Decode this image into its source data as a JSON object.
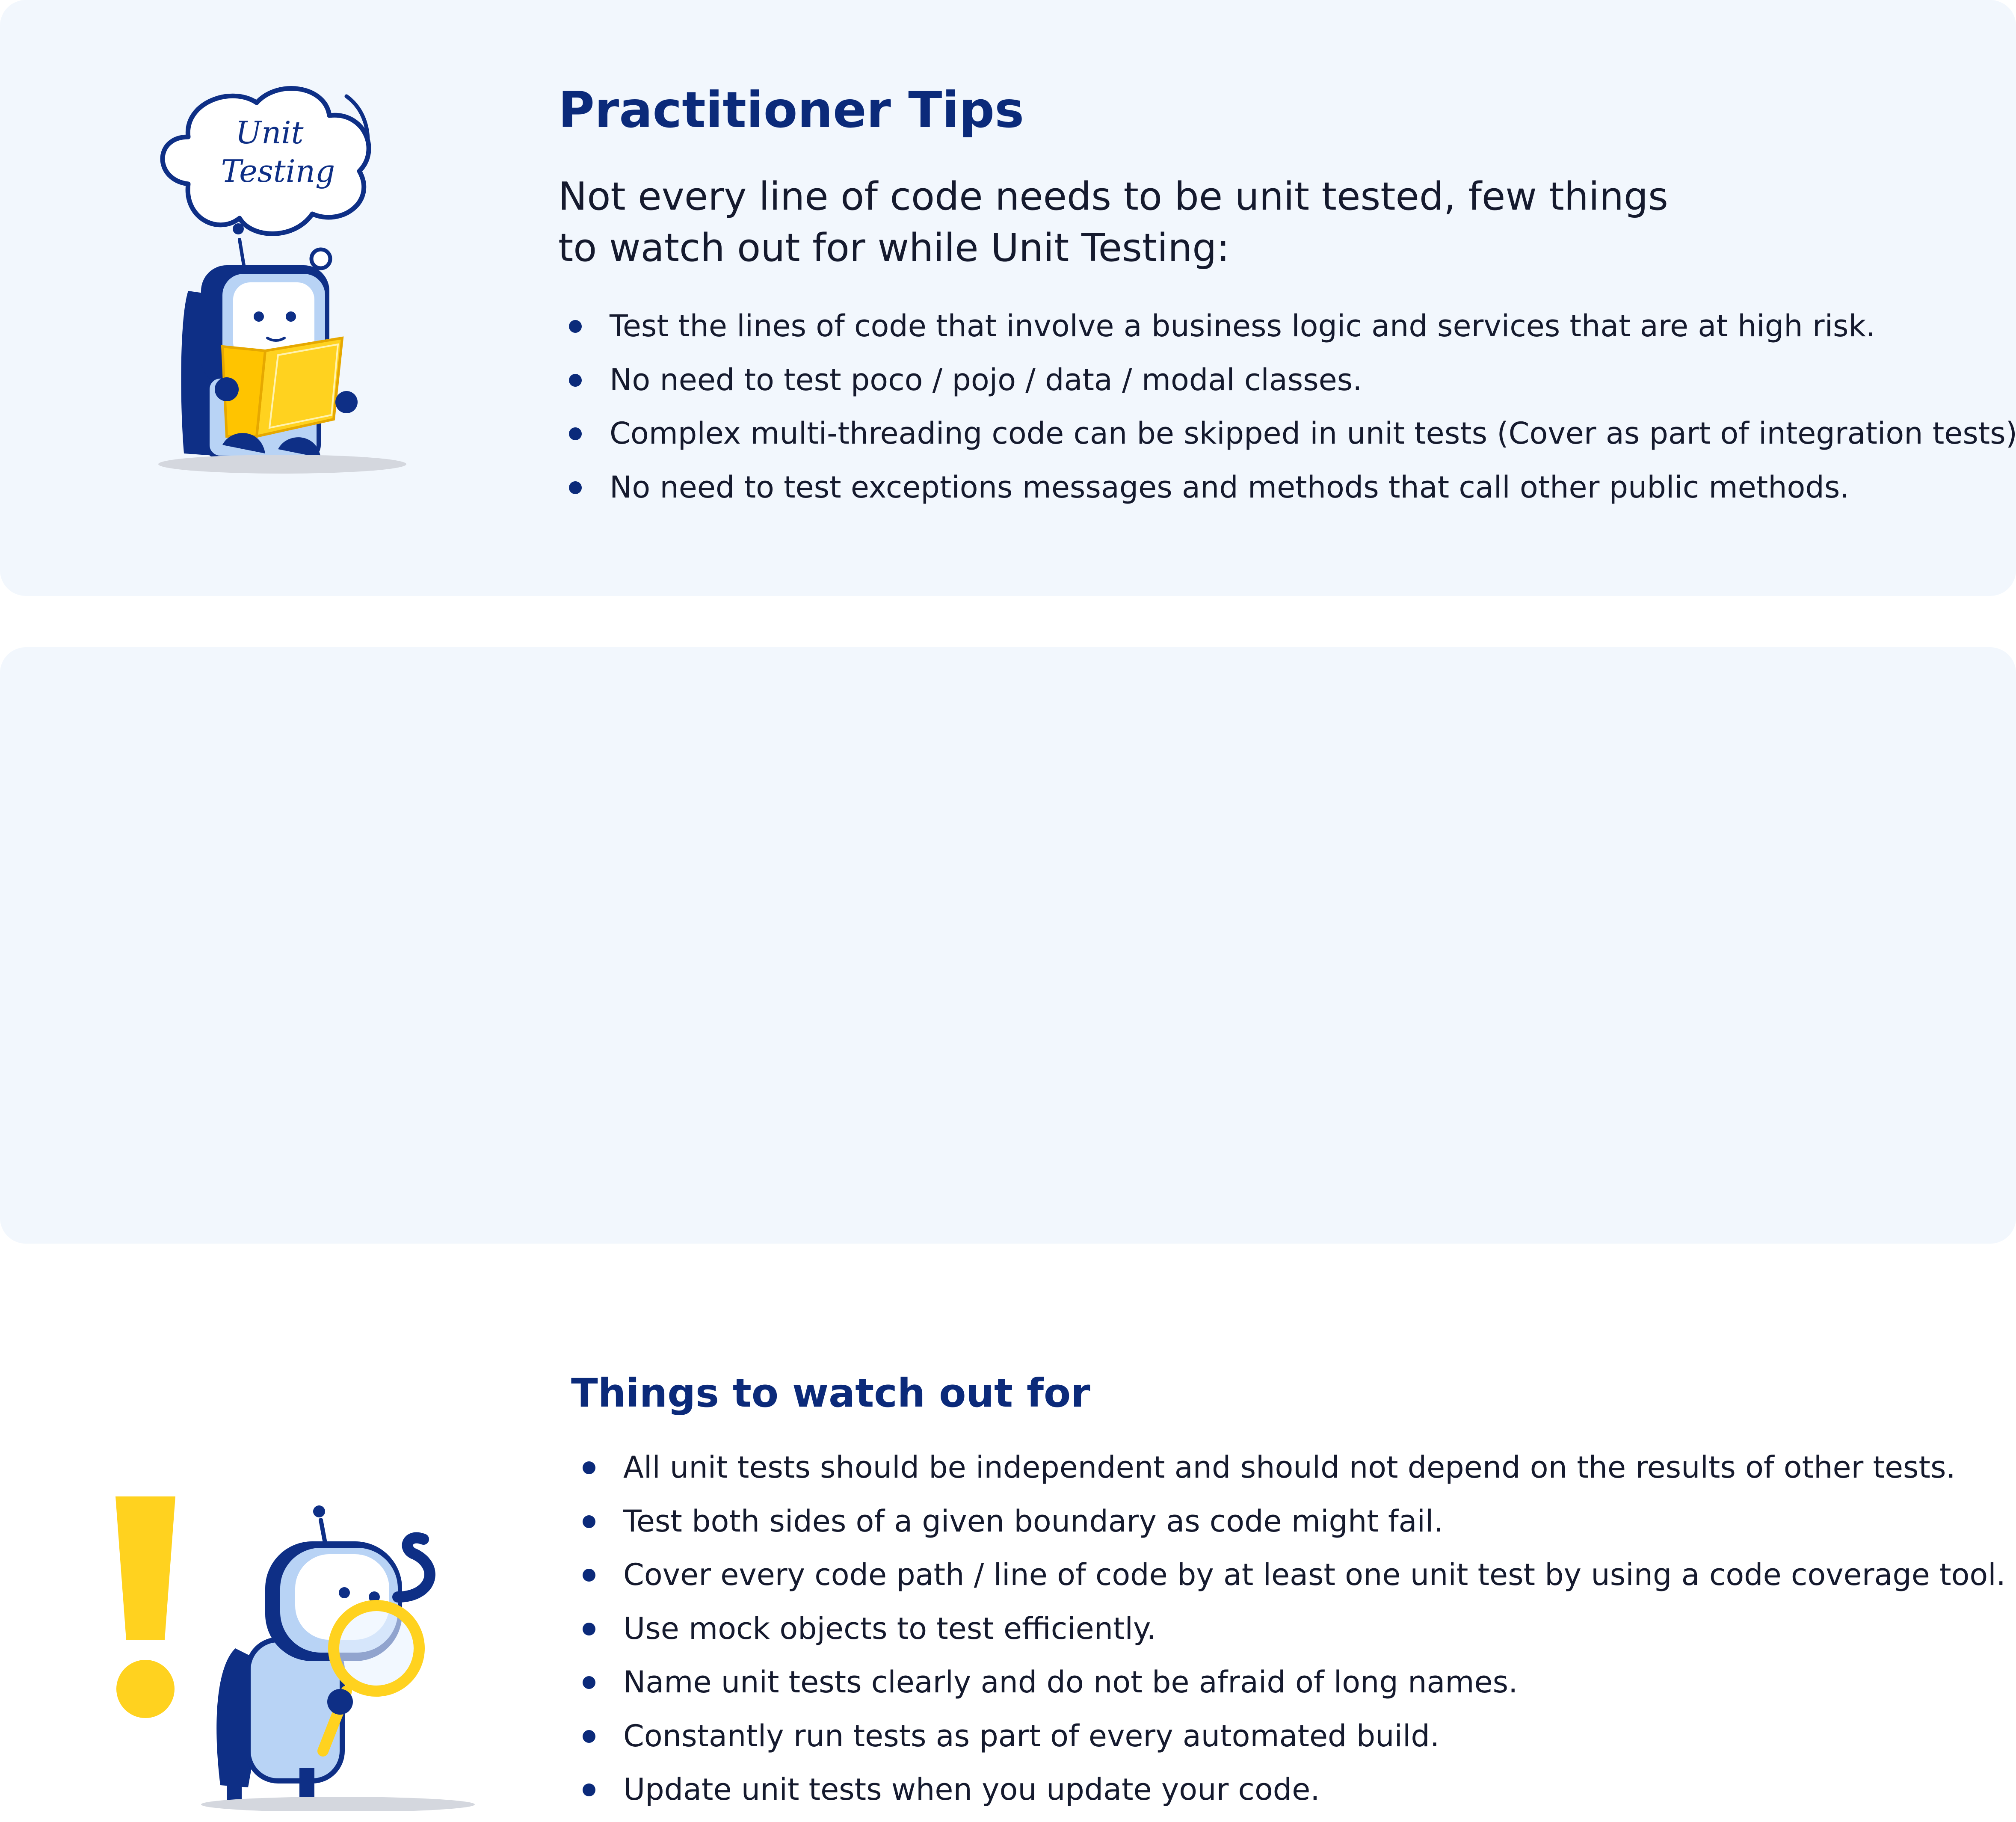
{
  "tips": {
    "title": "Practitioner Tips",
    "intro_line1": "Not every line of code needs to be unit tested, few things",
    "intro_line2": "to watch out for while Unit Testing:",
    "items": [
      "Test the lines of code that involve a business logic and services that are at high risk.",
      "No need to test poco / pojo / data / modal classes.",
      "Complex multi-threading code can be skipped in unit tests (Cover as part of integration tests)",
      "No need to test exceptions messages and methods that call other public methods."
    ],
    "illustration": {
      "icon": "robot-reading-book-icon",
      "thought_bubble_text": "Unit Testing"
    }
  },
  "watch": {
    "title": "Things to watch out for",
    "items": [
      "All unit tests should be independent and should not depend on the results of other tests.",
      "Test both sides of a given boundary as code might fail.",
      "Cover every code path / line of code by at least one unit test by using a code coverage tool.",
      "Use mock objects to test efficiently.",
      "Name unit tests clearly and do not be afraid of long names.",
      "Constantly run tests as part of every automated build.",
      "Update unit tests when you update your code."
    ],
    "illustration": {
      "icon": "robot-magnifying-glass-icon",
      "exclamation_icon": "exclamation-mark-icon"
    }
  },
  "colors": {
    "card_background": "#f2f7fd",
    "heading_blue": "#0b2a7a",
    "robot_dark_blue": "#0e2f86",
    "robot_light_blue": "#b8d3f5",
    "accent_yellow": "#ffd21f"
  }
}
